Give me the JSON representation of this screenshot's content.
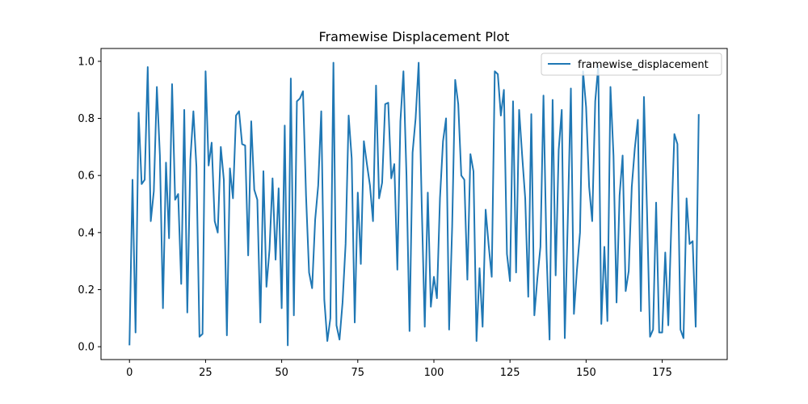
{
  "chart_data": {
    "type": "line",
    "title": "Framewise Displacement Plot",
    "xlabel": "",
    "ylabel": "",
    "xlim": [
      -9.35,
      196.35
    ],
    "ylim": [
      -0.045,
      1.045
    ],
    "xticks": [
      0,
      25,
      50,
      75,
      100,
      125,
      150,
      175
    ],
    "yticks": [
      0.0,
      0.2,
      0.4,
      0.6,
      0.8,
      1.0
    ],
    "xtick_labels": [
      "0",
      "25",
      "50",
      "75",
      "100",
      "125",
      "150",
      "175"
    ],
    "ytick_labels": [
      "0.0",
      "0.2",
      "0.4",
      "0.6",
      "0.8",
      "1.0"
    ],
    "grid": false,
    "legend_position": "upper-right",
    "series": [
      {
        "name": "framewise_displacement",
        "color": "#1f77b4",
        "x": [
          0,
          1,
          2,
          3,
          4,
          5,
          6,
          7,
          8,
          9,
          10,
          11,
          12,
          13,
          14,
          15,
          16,
          17,
          18,
          19,
          20,
          21,
          22,
          23,
          24,
          25,
          26,
          27,
          28,
          29,
          30,
          31,
          32,
          33,
          34,
          35,
          36,
          37,
          38,
          39,
          40,
          41,
          42,
          43,
          44,
          45,
          46,
          47,
          48,
          49,
          50,
          51,
          52,
          53,
          54,
          55,
          56,
          57,
          58,
          59,
          60,
          61,
          62,
          63,
          64,
          65,
          66,
          67,
          68,
          69,
          70,
          71,
          72,
          73,
          74,
          75,
          76,
          77,
          78,
          79,
          80,
          81,
          82,
          83,
          84,
          85,
          86,
          87,
          88,
          89,
          90,
          91,
          92,
          93,
          94,
          95,
          96,
          97,
          98,
          99,
          100,
          101,
          102,
          103,
          104,
          105,
          106,
          107,
          108,
          109,
          110,
          111,
          112,
          113,
          114,
          115,
          116,
          117,
          118,
          119,
          120,
          121,
          122,
          123,
          124,
          125,
          126,
          127,
          128,
          129,
          130,
          131,
          132,
          133,
          134,
          135,
          136,
          137,
          138,
          139,
          140,
          141,
          142,
          143,
          144,
          145,
          146,
          147,
          148,
          149,
          150,
          151,
          152,
          153,
          154,
          155,
          156,
          157,
          158,
          159,
          160,
          161,
          162,
          163,
          164,
          165,
          166,
          167,
          168,
          169,
          170,
          171,
          172,
          173,
          174,
          175,
          176,
          177,
          178,
          179,
          180,
          181,
          182,
          183,
          184,
          185,
          186,
          187
        ],
        "values": [
          0.005,
          0.585,
          0.05,
          0.82,
          0.57,
          0.585,
          0.98,
          0.44,
          0.545,
          0.91,
          0.67,
          0.135,
          0.645,
          0.38,
          0.92,
          0.515,
          0.535,
          0.22,
          0.83,
          0.12,
          0.655,
          0.825,
          0.63,
          0.035,
          0.045,
          0.965,
          0.635,
          0.715,
          0.44,
          0.4,
          0.7,
          0.585,
          0.04,
          0.625,
          0.52,
          0.81,
          0.825,
          0.71,
          0.705,
          0.32,
          0.79,
          0.55,
          0.515,
          0.085,
          0.615,
          0.21,
          0.34,
          0.59,
          0.305,
          0.555,
          0.135,
          0.775,
          0.005,
          0.94,
          0.11,
          0.86,
          0.87,
          0.895,
          0.53,
          0.26,
          0.205,
          0.445,
          0.565,
          0.825,
          0.165,
          0.02,
          0.1,
          0.995,
          0.075,
          0.025,
          0.155,
          0.36,
          0.81,
          0.66,
          0.085,
          0.54,
          0.29,
          0.72,
          0.64,
          0.565,
          0.44,
          0.915,
          0.52,
          0.575,
          0.85,
          0.855,
          0.59,
          0.64,
          0.27,
          0.79,
          0.965,
          0.6,
          0.055,
          0.68,
          0.8,
          0.995,
          0.5,
          0.07,
          0.54,
          0.14,
          0.245,
          0.17,
          0.52,
          0.72,
          0.8,
          0.06,
          0.42,
          0.935,
          0.85,
          0.6,
          0.585,
          0.235,
          0.675,
          0.615,
          0.02,
          0.275,
          0.07,
          0.48,
          0.355,
          0.245,
          0.965,
          0.955,
          0.81,
          0.9,
          0.325,
          0.23,
          0.86,
          0.26,
          0.83,
          0.67,
          0.52,
          0.175,
          0.815,
          0.11,
          0.24,
          0.35,
          0.88,
          0.33,
          0.025,
          0.865,
          0.25,
          0.69,
          0.83,
          0.03,
          0.45,
          0.905,
          0.115,
          0.27,
          0.4,
          0.965,
          0.84,
          0.56,
          0.44,
          0.86,
          0.985,
          0.08,
          0.35,
          0.09,
          0.91,
          0.67,
          0.155,
          0.53,
          0.67,
          0.195,
          0.265,
          0.56,
          0.695,
          0.795,
          0.125,
          0.875,
          0.48,
          0.035,
          0.06,
          0.505,
          0.05,
          0.05,
          0.33,
          0.075,
          0.43,
          0.745,
          0.71,
          0.06,
          0.03,
          0.52,
          0.36,
          0.37,
          0.07,
          0.815
        ]
      }
    ]
  }
}
